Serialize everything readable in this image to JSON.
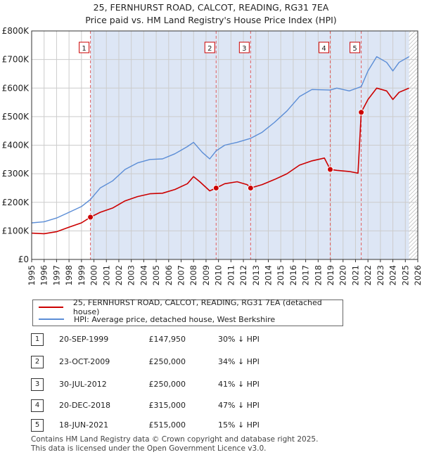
{
  "title_line1": "25, FERNHURST ROAD, CALCOT, READING, RG31 7EA",
  "title_line2": "Price paid vs. HM Land Registry's House Price Index (HPI)",
  "colors": {
    "property": "#cc0000",
    "hpi": "#5b8dd6",
    "shade": "#dde6f5",
    "grid": "#cccccc",
    "marker_border": "#cc0000"
  },
  "legend": {
    "property_label": "25, FERNHURST ROAD, CALCOT, READING, RG31 7EA (detached house)",
    "hpi_label": "HPI: Average price, detached house, West Berkshire"
  },
  "sales": [
    {
      "num": "1",
      "date": "20-SEP-1999",
      "price": "£147,950",
      "hpi_diff": "30% ↓ HPI"
    },
    {
      "num": "2",
      "date": "23-OCT-2009",
      "price": "£250,000",
      "hpi_diff": "34% ↓ HPI"
    },
    {
      "num": "3",
      "date": "30-JUL-2012",
      "price": "£250,000",
      "hpi_diff": "41% ↓ HPI"
    },
    {
      "num": "4",
      "date": "20-DEC-2018",
      "price": "£315,000",
      "hpi_diff": "47% ↓ HPI"
    },
    {
      "num": "5",
      "date": "18-JUN-2021",
      "price": "£515,000",
      "hpi_diff": "15% ↓ HPI"
    }
  ],
  "footer_line1": "Contains HM Land Registry data © Crown copyright and database right 2025.",
  "footer_line2": "This data is licensed under the Open Government Licence v3.0.",
  "chart_data": {
    "type": "line",
    "xlim": [
      1995,
      2026
    ],
    "ylim": [
      0,
      800000
    ],
    "x_ticks": [
      "1995",
      "1996",
      "1997",
      "1998",
      "1999",
      "2000",
      "2001",
      "2002",
      "2003",
      "2004",
      "2005",
      "2006",
      "2007",
      "2008",
      "2009",
      "2010",
      "2011",
      "2012",
      "2013",
      "2014",
      "2015",
      "2016",
      "2017",
      "2018",
      "2019",
      "2020",
      "2021",
      "2022",
      "2023",
      "2024",
      "2025",
      "2026"
    ],
    "y_ticks": [
      {
        "value": 0,
        "label": "£0"
      },
      {
        "value": 100000,
        "label": "£100K"
      },
      {
        "value": 200000,
        "label": "£200K"
      },
      {
        "value": 300000,
        "label": "£300K"
      },
      {
        "value": 400000,
        "label": "£400K"
      },
      {
        "value": 500000,
        "label": "£500K"
      },
      {
        "value": 600000,
        "label": "£600K"
      },
      {
        "value": 700000,
        "label": "£700K"
      },
      {
        "value": 800000,
        "label": "£800K"
      }
    ],
    "grid": true,
    "shaded_ranges": [
      [
        1999.72,
        2025.3
      ]
    ],
    "hatched_from": 2025.3,
    "series": [
      {
        "name": "25, FERNHURST ROAD, CALCOT, READING, RG31 7EA (detached house)",
        "points": [
          [
            1995.0,
            92000
          ],
          [
            1996.0,
            90000
          ],
          [
            1997.0,
            97000
          ],
          [
            1998.0,
            113000
          ],
          [
            1999.0,
            128000
          ],
          [
            1999.72,
            147950
          ],
          [
            2000.5,
            165000
          ],
          [
            2001.5,
            180000
          ],
          [
            2002.5,
            205000
          ],
          [
            2003.5,
            220000
          ],
          [
            2004.5,
            230000
          ],
          [
            2005.5,
            232000
          ],
          [
            2006.5,
            245000
          ],
          [
            2007.5,
            265000
          ],
          [
            2008.0,
            290000
          ],
          [
            2008.5,
            272000
          ],
          [
            2009.3,
            240000
          ],
          [
            2009.81,
            250000
          ],
          [
            2010.5,
            265000
          ],
          [
            2011.5,
            272000
          ],
          [
            2012.3,
            262000
          ],
          [
            2012.58,
            250000
          ],
          [
            2013.5,
            262000
          ],
          [
            2014.5,
            280000
          ],
          [
            2015.5,
            300000
          ],
          [
            2016.5,
            330000
          ],
          [
            2017.5,
            345000
          ],
          [
            2018.5,
            355000
          ],
          [
            2018.97,
            315000
          ],
          [
            2019.5,
            312000
          ],
          [
            2020.5,
            308000
          ],
          [
            2021.2,
            302000
          ],
          [
            2021.46,
            515000
          ],
          [
            2022.0,
            560000
          ],
          [
            2022.7,
            600000
          ],
          [
            2023.5,
            590000
          ],
          [
            2024.0,
            560000
          ],
          [
            2024.5,
            585000
          ],
          [
            2025.3,
            600000
          ]
        ]
      },
      {
        "name": "HPI: Average price, detached house, West Berkshire",
        "points": [
          [
            1995.0,
            128000
          ],
          [
            1996.0,
            132000
          ],
          [
            1997.0,
            145000
          ],
          [
            1998.0,
            165000
          ],
          [
            1999.0,
            185000
          ],
          [
            1999.72,
            210000
          ],
          [
            2000.5,
            250000
          ],
          [
            2001.5,
            275000
          ],
          [
            2002.5,
            315000
          ],
          [
            2003.5,
            338000
          ],
          [
            2004.5,
            350000
          ],
          [
            2005.5,
            352000
          ],
          [
            2006.5,
            370000
          ],
          [
            2007.5,
            395000
          ],
          [
            2008.0,
            410000
          ],
          [
            2008.7,
            375000
          ],
          [
            2009.3,
            352000
          ],
          [
            2009.81,
            380000
          ],
          [
            2010.5,
            400000
          ],
          [
            2011.5,
            410000
          ],
          [
            2012.58,
            424000
          ],
          [
            2013.5,
            445000
          ],
          [
            2014.5,
            480000
          ],
          [
            2015.5,
            520000
          ],
          [
            2016.5,
            570000
          ],
          [
            2017.5,
            595000
          ],
          [
            2018.97,
            593000
          ],
          [
            2019.5,
            600000
          ],
          [
            2020.5,
            590000
          ],
          [
            2021.46,
            605000
          ],
          [
            2022.0,
            660000
          ],
          [
            2022.7,
            710000
          ],
          [
            2023.5,
            690000
          ],
          [
            2024.0,
            660000
          ],
          [
            2024.5,
            690000
          ],
          [
            2025.3,
            710000
          ]
        ]
      }
    ],
    "markers": [
      {
        "label": "1",
        "x": 1999.72,
        "y": 147950
      },
      {
        "label": "2",
        "x": 2009.81,
        "y": 250000
      },
      {
        "label": "3",
        "x": 2012.58,
        "y": 250000
      },
      {
        "label": "4",
        "x": 2018.97,
        "y": 315000
      },
      {
        "label": "5",
        "x": 2021.46,
        "y": 515000
      }
    ]
  }
}
